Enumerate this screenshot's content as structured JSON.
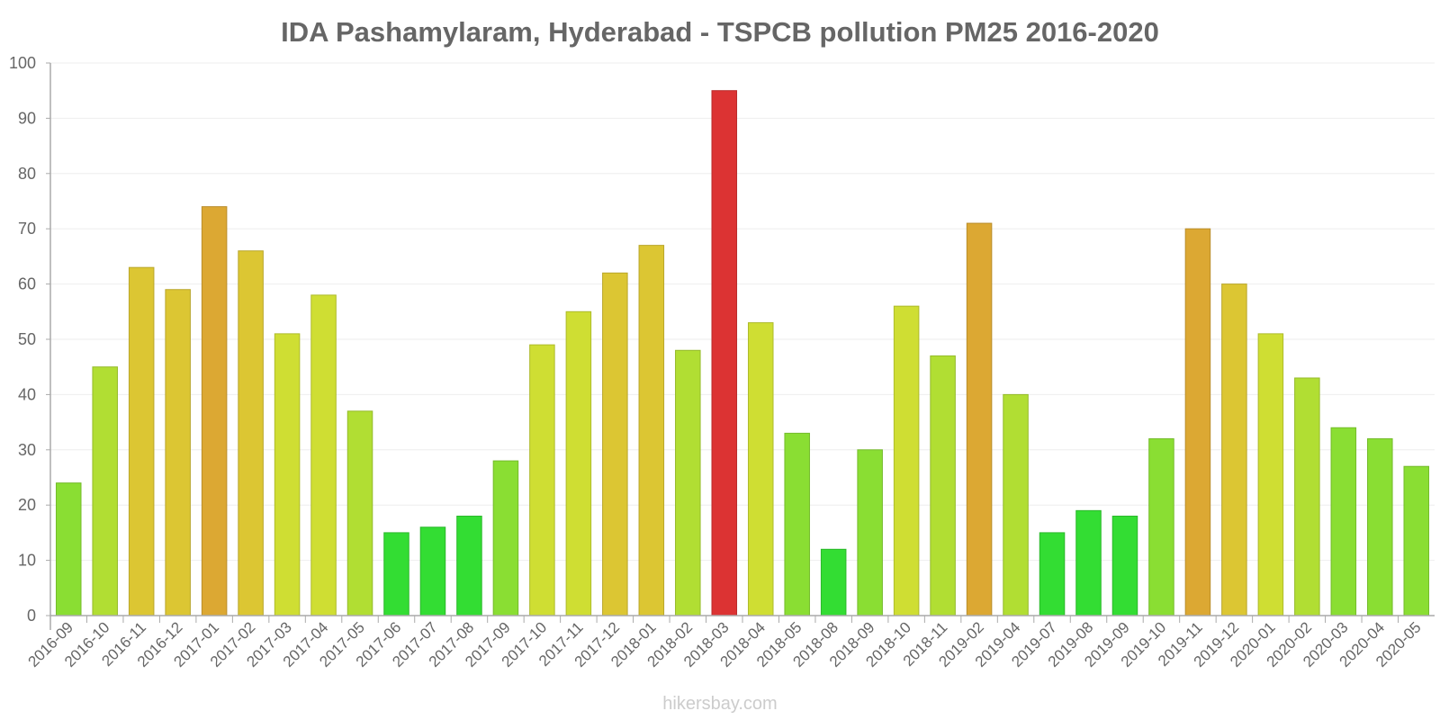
{
  "chart_data": {
    "type": "bar",
    "title": "IDA Pashamylaram, Hyderabad - TSPCB pollution PM25 2016-2020",
    "xlabel": "",
    "ylabel": "",
    "ylim": [
      0,
      100
    ],
    "yticks": [
      "0",
      "10",
      "20",
      "30",
      "40",
      "50",
      "60",
      "70",
      "80",
      "90",
      "100"
    ],
    "grid": true,
    "legend": "none",
    "categories": [
      "2016-09",
      "2016-10",
      "2016-11",
      "2016-12",
      "2017-01",
      "2017-02",
      "2017-03",
      "2017-04",
      "2017-05",
      "2017-06",
      "2017-07",
      "2017-08",
      "2017-09",
      "2017-10",
      "2017-11",
      "2017-12",
      "2018-01",
      "2018-02",
      "2018-03",
      "2018-04",
      "2018-05",
      "2018-08",
      "2018-09",
      "2018-10",
      "2018-11",
      "2019-02",
      "2019-04",
      "2019-07",
      "2019-08",
      "2019-09",
      "2019-10",
      "2019-11",
      "2019-12",
      "2020-01",
      "2020-02",
      "2020-03",
      "2020-04",
      "2020-05"
    ],
    "values": [
      24,
      45,
      63,
      59,
      74,
      66,
      51,
      58,
      37,
      15,
      16,
      18,
      28,
      49,
      55,
      62,
      67,
      48,
      95,
      53,
      33,
      12,
      30,
      56,
      47,
      71,
      40,
      15,
      19,
      18,
      32,
      70,
      60,
      51,
      43,
      34,
      32,
      27
    ],
    "color_scale": [
      {
        "max": 20,
        "fill": "#33dd33",
        "stroke": "#2bb82b"
      },
      {
        "max": 35,
        "fill": "#8ade33",
        "stroke": "#74bb2b"
      },
      {
        "max": 48,
        "fill": "#b1de33",
        "stroke": "#95bb2b"
      },
      {
        "max": 58,
        "fill": "#cfde33",
        "stroke": "#aebb2b"
      },
      {
        "max": 68,
        "fill": "#dcc633",
        "stroke": "#b9a62b"
      },
      {
        "max": 80,
        "fill": "#dca833",
        "stroke": "#b98d2b"
      },
      {
        "max": 200,
        "fill": "#dc3333",
        "stroke": "#b92b2b"
      }
    ]
  },
  "watermark": "hikersbay.com"
}
